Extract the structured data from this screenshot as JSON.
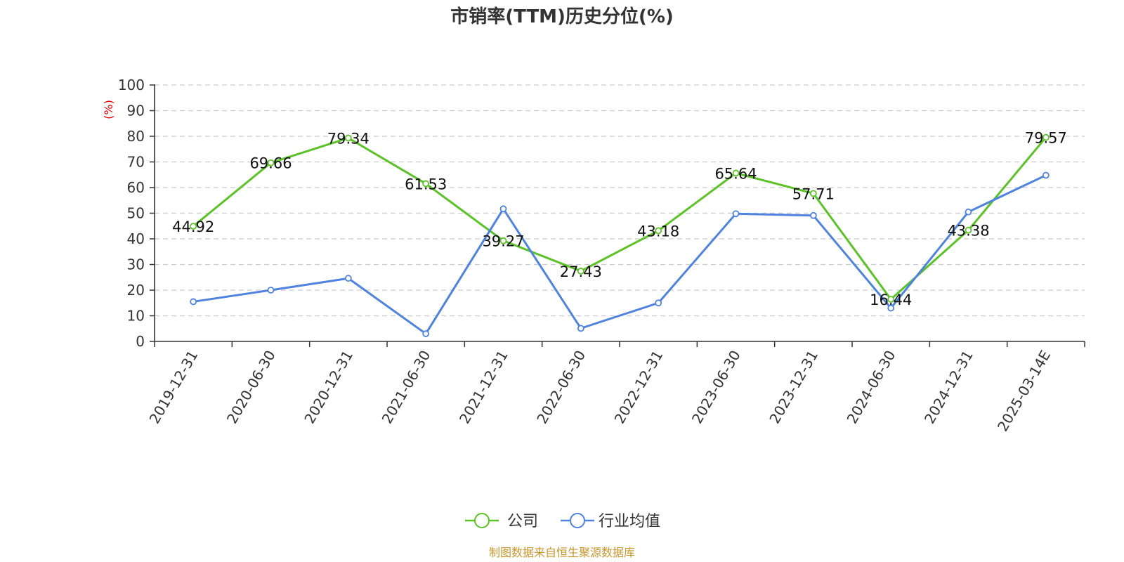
{
  "chart_data": {
    "type": "line",
    "title": "市销率(TTM)历史分位(%)",
    "ylabel": "(%)",
    "ylim": [
      0,
      100
    ],
    "yticks": [
      0,
      10,
      20,
      30,
      40,
      50,
      60,
      70,
      80,
      90,
      100
    ],
    "grid": true,
    "legend_position": "bottom-center",
    "categories": [
      "2019-12-31",
      "2020-06-30",
      "2020-12-31",
      "2021-06-30",
      "2021-12-31",
      "2022-06-30",
      "2022-12-31",
      "2023-06-30",
      "2023-12-31",
      "2024-06-30",
      "2024-12-31",
      "2025-03-14E"
    ],
    "series": [
      {
        "name": "公司",
        "color": "#5cc227",
        "values": [
          44.92,
          69.66,
          79.34,
          61.53,
          39.27,
          27.43,
          43.18,
          65.64,
          57.71,
          16.44,
          43.38,
          79.57
        ],
        "labels": [
          "44.92",
          "69.66",
          "79.34",
          "61.53",
          "39.27",
          "27.43",
          "43.18",
          "65.64",
          "57.71",
          "16.44",
          "43.38",
          "79.57"
        ]
      },
      {
        "name": "行业均值",
        "color": "#4f83dd",
        "values": [
          15.5,
          20.0,
          24.6,
          3.0,
          51.7,
          5.1,
          15.0,
          49.8,
          49.1,
          13.0,
          50.5,
          64.8
        ]
      }
    ]
  },
  "footer": {
    "source": "制图数据来自恒生聚源数据库"
  }
}
